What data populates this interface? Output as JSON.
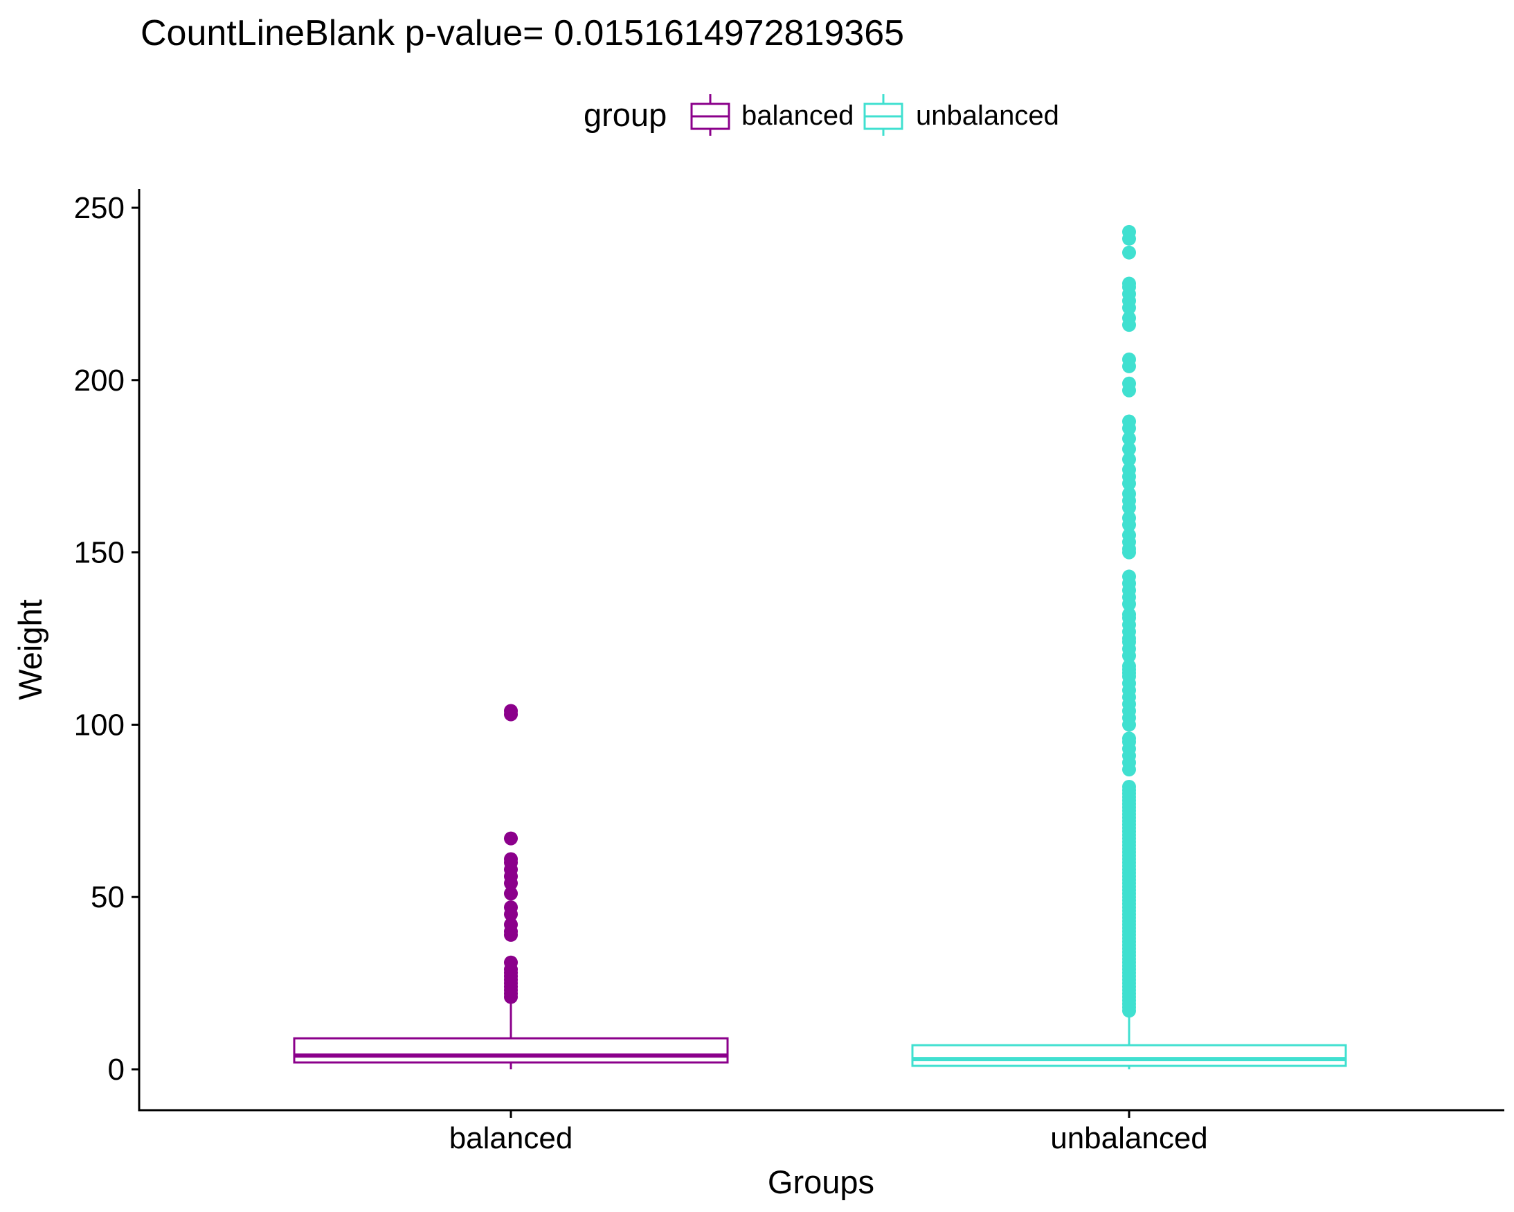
{
  "chart_data": {
    "type": "boxplot",
    "title": "CountLineBlank  p-value= 0.0151614972819365",
    "xlabel": "Groups",
    "ylabel": "Weight",
    "ylim": [
      -12,
      256
    ],
    "yticks": [
      0,
      50,
      100,
      150,
      200,
      250
    ],
    "grid": false,
    "legend": {
      "title": "group",
      "placement": "top",
      "entries": [
        "balanced",
        "unbalanced"
      ]
    },
    "categories": [
      "balanced",
      "unbalanced"
    ],
    "series": [
      {
        "name": "balanced",
        "color": "#8B008B",
        "box": {
          "whisker_low": 0,
          "q1": 2,
          "median": 4,
          "q3": 9,
          "whisker_high": 19
        },
        "outliers": [
          21,
          22,
          23,
          24,
          25,
          26,
          27,
          28,
          29,
          31,
          39,
          40,
          42,
          45,
          47,
          51,
          54,
          56,
          58,
          60,
          61,
          67,
          103,
          104
        ]
      },
      {
        "name": "unbalanced",
        "color": "#40E0D0",
        "box": {
          "whisker_low": 0,
          "q1": 1,
          "median": 3,
          "q3": 7,
          "whisker_high": 16
        },
        "outliers": [
          17,
          18,
          19,
          20,
          21,
          22,
          23,
          24,
          25,
          26,
          27,
          28,
          29,
          30,
          31,
          32,
          33,
          34,
          35,
          36,
          37,
          38,
          39,
          40,
          41,
          42,
          43,
          44,
          45,
          46,
          47,
          48,
          49,
          50,
          51,
          52,
          53,
          54,
          55,
          56,
          57,
          58,
          59,
          60,
          61,
          62,
          63,
          64,
          65,
          66,
          67,
          68,
          69,
          70,
          71,
          72,
          73,
          74,
          75,
          76,
          77,
          78,
          79,
          80,
          81,
          82,
          87,
          89,
          91,
          93,
          95,
          96,
          100,
          102,
          104,
          106,
          108,
          110,
          112,
          114,
          115,
          116,
          117,
          120,
          122,
          124,
          125,
          127,
          129,
          131,
          132,
          135,
          137,
          139,
          141,
          143,
          150,
          151,
          153,
          155,
          158,
          160,
          163,
          165,
          167,
          170,
          172,
          174,
          177,
          180,
          183,
          186,
          188,
          197,
          199,
          204,
          206,
          216,
          218,
          221,
          223,
          225,
          227,
          228,
          237,
          241,
          243
        ]
      }
    ]
  }
}
